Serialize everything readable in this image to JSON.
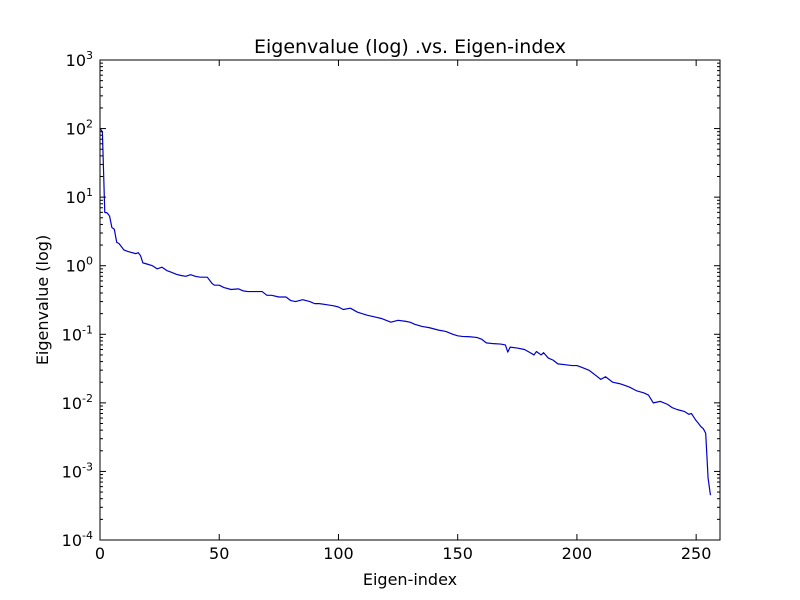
{
  "chart_data": {
    "type": "line",
    "title": "Eigenvalue (log) .vs. Eigen-index",
    "xlabel": "Eigen-index",
    "ylabel": "Eigenvalue (log)",
    "xlim": [
      0,
      260
    ],
    "ylim": [
      0.0001,
      1000
    ],
    "yscale": "log",
    "grid": false,
    "line_color": "#0000cc",
    "x_ticks": [
      {
        "value": 0,
        "label": "0"
      },
      {
        "value": 50,
        "label": "50"
      },
      {
        "value": 100,
        "label": "100"
      },
      {
        "value": 150,
        "label": "150"
      },
      {
        "value": 200,
        "label": "200"
      },
      {
        "value": 250,
        "label": "250"
      }
    ],
    "y_ticks": [
      {
        "value": 0.0001,
        "base": "10",
        "exp": "-4"
      },
      {
        "value": 0.001,
        "base": "10",
        "exp": "-3"
      },
      {
        "value": 0.01,
        "base": "10",
        "exp": "-2"
      },
      {
        "value": 0.1,
        "base": "10",
        "exp": "-1"
      },
      {
        "value": 1,
        "base": "10",
        "exp": "0"
      },
      {
        "value": 10,
        "base": "10",
        "exp": "1"
      },
      {
        "value": 100,
        "base": "10",
        "exp": "2"
      },
      {
        "value": 1000,
        "base": "10",
        "exp": "3"
      }
    ],
    "series": [
      {
        "x": [
          0,
          1,
          2,
          3,
          4,
          5,
          6,
          7,
          8,
          10,
          12,
          15,
          16,
          17,
          18,
          20,
          22,
          24,
          26,
          28,
          30,
          32,
          34,
          36,
          38,
          40,
          42,
          45,
          47,
          48,
          50,
          52,
          55,
          58,
          60,
          62,
          65,
          68,
          70,
          72,
          75,
          78,
          80,
          82,
          85,
          88,
          90,
          92,
          95,
          98,
          100,
          102,
          105,
          108,
          110,
          112,
          115,
          118,
          120,
          122,
          125,
          128,
          130,
          132,
          135,
          138,
          140,
          142,
          145,
          148,
          150,
          152,
          155,
          158,
          160,
          162,
          165,
          168,
          170,
          171,
          172,
          175,
          178,
          180,
          182,
          183,
          185,
          186,
          188,
          190,
          192,
          195,
          198,
          200,
          202,
          205,
          208,
          210,
          212,
          215,
          218,
          220,
          222,
          225,
          228,
          230,
          232,
          235,
          238,
          240,
          242,
          245,
          247,
          248,
          250,
          251,
          252,
          253,
          254,
          255,
          256
        ],
        "y": [
          100,
          90,
          6,
          5.9,
          5.3,
          3.6,
          3.4,
          2.2,
          2.1,
          1.7,
          1.6,
          1.5,
          1.55,
          1.4,
          1.1,
          1.05,
          1.0,
          0.9,
          0.95,
          0.85,
          0.8,
          0.75,
          0.72,
          0.7,
          0.74,
          0.7,
          0.68,
          0.68,
          0.55,
          0.52,
          0.52,
          0.48,
          0.45,
          0.46,
          0.43,
          0.42,
          0.42,
          0.42,
          0.37,
          0.37,
          0.35,
          0.35,
          0.31,
          0.3,
          0.32,
          0.3,
          0.28,
          0.28,
          0.27,
          0.26,
          0.25,
          0.23,
          0.24,
          0.21,
          0.2,
          0.19,
          0.18,
          0.17,
          0.16,
          0.15,
          0.16,
          0.155,
          0.15,
          0.14,
          0.13,
          0.125,
          0.12,
          0.115,
          0.11,
          0.1,
          0.095,
          0.093,
          0.092,
          0.09,
          0.085,
          0.075,
          0.073,
          0.072,
          0.07,
          0.055,
          0.065,
          0.063,
          0.06,
          0.055,
          0.05,
          0.056,
          0.05,
          0.054,
          0.045,
          0.042,
          0.037,
          0.036,
          0.035,
          0.035,
          0.033,
          0.03,
          0.025,
          0.022,
          0.024,
          0.02,
          0.019,
          0.018,
          0.017,
          0.015,
          0.014,
          0.013,
          0.01,
          0.0105,
          0.0095,
          0.0085,
          0.008,
          0.0075,
          0.0068,
          0.007,
          0.0055,
          0.005,
          0.0045,
          0.0042,
          0.0036,
          0.0008,
          0.00045
        ]
      }
    ]
  }
}
